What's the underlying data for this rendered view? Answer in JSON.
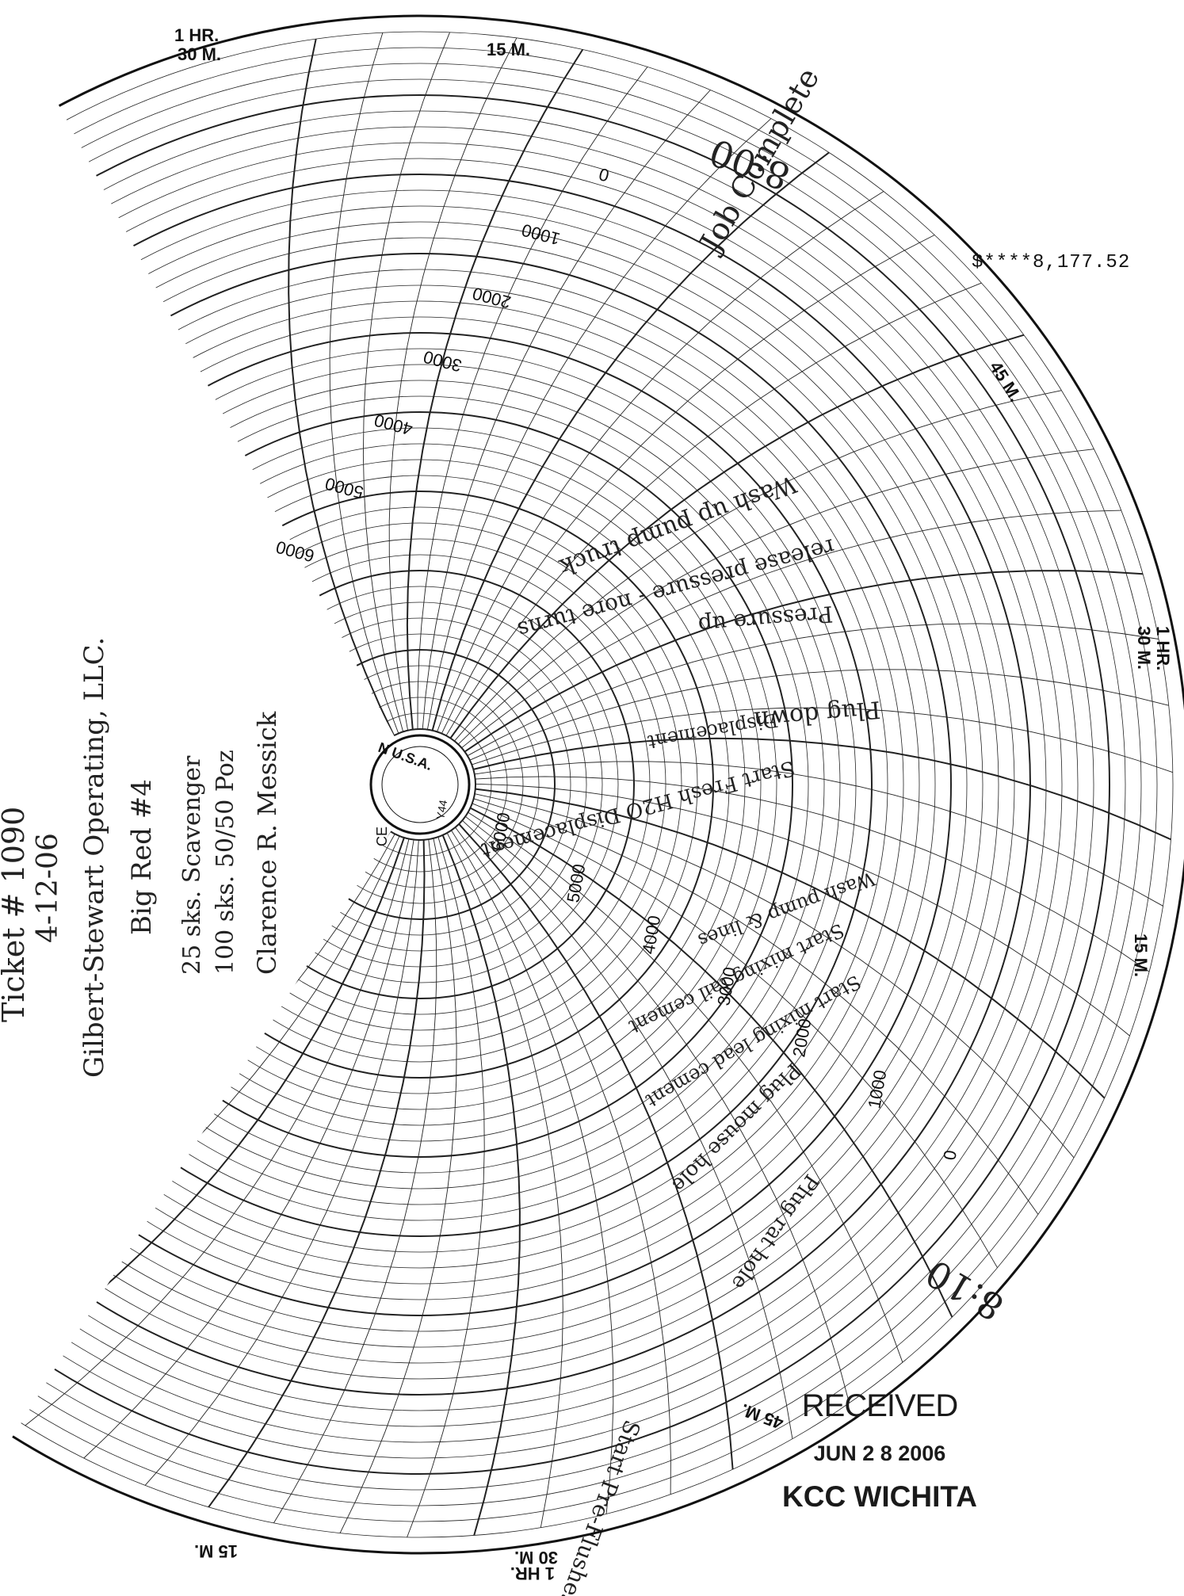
{
  "amount": "$****8,177.52",
  "stamp": {
    "line1": "RECEIVED",
    "line2": "JUN 2 8 2006",
    "line3": "KCC WICHITA"
  },
  "chart": {
    "time_labels": [
      "1 HR.",
      "30 M.",
      "15 M.",
      "45 M.",
      "1 HR.",
      "30 M.",
      "15 M.",
      "45 M.",
      "1 HR.",
      "30 M.",
      "15 M."
    ],
    "pressure_scale_upper": [
      "0",
      "1000",
      "2000",
      "3000",
      "4000",
      "5000",
      "6000"
    ],
    "pressure_scale_lower": [
      "6000",
      "5000",
      "4000",
      "3000",
      "2000",
      "1000",
      "0"
    ],
    "center_text": [
      "N U.S.A.",
      "Y44",
      "CE"
    ],
    "marks": [
      "8:00",
      "8:10"
    ]
  },
  "handwritten_info": [
    "Ticket # 1090",
    "4-12-06",
    "Gilbert-Stewart Operating, LLC.",
    "Big Red #4",
    "25 sks. Scavenger",
    "100 sks. 50/50 Poz",
    "Clarence R. Messick"
  ],
  "annotations": [
    "Job Complete",
    "Wash up pump truck",
    "release pressure - nore turns",
    "Pressure up",
    "Plug down",
    "Displacement",
    "Start Fresh H2O Displacement",
    "Wash pump & lines",
    "Start mixing tail cement",
    "Start mixing lead cement",
    "Plug mouse hole",
    "Plug rat hole",
    "Start Pre-Flushes"
  ]
}
